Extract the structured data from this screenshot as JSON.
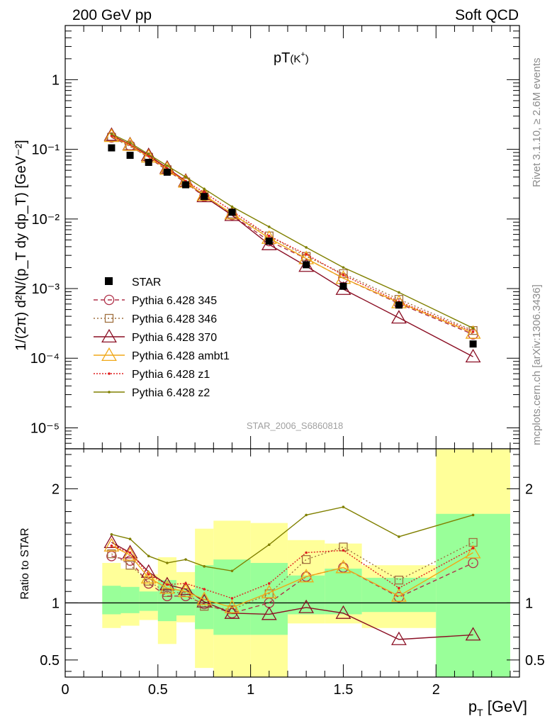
{
  "header": {
    "left": "200 GeV pp",
    "right": "Soft QCD"
  },
  "side_labels": {
    "top": "Rivet 3.1.10, ≥ 2.6M events",
    "bottom": "mcplots.cern.ch [arXiv:1306.3436]"
  },
  "watermark": "STAR_2006_S6860818",
  "chart_data": [
    {
      "type": "line",
      "panel": "main",
      "title": "pT(K+)",
      "title_main": "pT",
      "title_sub": "(K",
      "title_sup": "+",
      "title_close": ")",
      "ylabel": "1/(2π) d²N/(p_T dy dp_T) [GeV⁻²]",
      "yscale": "log",
      "ylim": [
        5e-06,
        6
      ],
      "xlim": [
        0,
        2.45
      ],
      "y_ticks": [
        "10⁻⁵",
        "10⁻⁴",
        "10⁻³",
        "10⁻²",
        "10⁻¹",
        "1"
      ],
      "y_tick_values": [
        1e-05,
        0.0001,
        0.001,
        0.01,
        0.1,
        1
      ],
      "legend_position": "left-middle",
      "x": [
        0.25,
        0.35,
        0.45,
        0.55,
        0.65,
        0.75,
        0.9,
        1.1,
        1.3,
        1.5,
        1.8,
        2.2
      ],
      "data": {
        "name": "STAR",
        "values": [
          0.105,
          0.082,
          0.065,
          0.047,
          0.031,
          0.021,
          0.0125,
          0.0048,
          0.0022,
          0.00108,
          0.00058,
          0.00016
        ]
      },
      "series": [
        {
          "name": "Pythia 6.428 345",
          "color": "#b03048",
          "marker": "circle",
          "dash": "6,4",
          "values": [
            0.148,
            0.113,
            0.076,
            0.05,
            0.033,
            0.021,
            0.0114,
            0.0048,
            0.0027,
            0.00141,
            0.00061,
            0.00022
          ]
        },
        {
          "name": "Pythia 6.428 346",
          "color": "#a07040",
          "marker": "square",
          "dash": "2,3",
          "values": [
            0.149,
            0.11,
            0.077,
            0.051,
            0.034,
            0.022,
            0.0118,
            0.0057,
            0.0029,
            0.00164,
            0.0007,
            0.00025
          ]
        },
        {
          "name": "Pythia 6.428 370",
          "color": "#8b0f24",
          "marker": "triangle",
          "dash": "",
          "values": [
            0.16,
            0.117,
            0.082,
            0.054,
            0.035,
            0.021,
            0.0113,
            0.0043,
            0.0021,
            0.00098,
            0.00038,
            0.000105
          ]
        },
        {
          "name": "Pythia 6.428 ambt1",
          "color": "#f0a818",
          "marker": "triangle",
          "dash": "",
          "values": [
            0.154,
            0.115,
            0.078,
            0.052,
            0.034,
            0.022,
            0.0119,
            0.0053,
            0.0027,
            0.00141,
            0.00063,
            0.00023
          ]
        },
        {
          "name": "Pythia 6.428 z1",
          "color": "#e02020",
          "marker": "dot",
          "dash": "2,2",
          "values": [
            0.156,
            0.117,
            0.08,
            0.053,
            0.035,
            0.024,
            0.013,
            0.0057,
            0.0031,
            0.00156,
            0.00065,
            0.00024
          ]
        },
        {
          "name": "Pythia 6.428 z2",
          "color": "#808000",
          "marker": "dot",
          "dash": "",
          "values": [
            0.166,
            0.124,
            0.085,
            0.058,
            0.04,
            0.027,
            0.015,
            0.0077,
            0.0039,
            0.00201,
            0.00088,
            0.00027
          ]
        }
      ]
    },
    {
      "type": "line",
      "panel": "ratio",
      "ylabel": "Ratio to STAR",
      "xlabel": "p_T [GeV]",
      "xlabel_main": "p",
      "xlabel_sub": "T",
      "xlabel_rest": " [GeV]",
      "ylim": [
        0.35,
        2.35
      ],
      "xlim": [
        0,
        2.45
      ],
      "x_ticks": [
        "0",
        "0.5",
        "1",
        "1.5",
        "2"
      ],
      "x_tick_values": [
        0,
        0.5,
        1,
        1.5,
        2
      ],
      "y_ticks": [
        "0.5",
        "1",
        "2"
      ],
      "y_tick_values": [
        0.5,
        1,
        2
      ],
      "bins": [
        {
          "lo": 0.2,
          "hi": 0.3,
          "green": [
            0.9,
            1.15
          ],
          "yellow": [
            0.78,
            1.35
          ]
        },
        {
          "lo": 0.3,
          "hi": 0.4,
          "green": [
            0.91,
            1.14
          ],
          "yellow": [
            0.8,
            1.3
          ]
        },
        {
          "lo": 0.4,
          "hi": 0.5,
          "green": [
            0.93,
            1.1
          ],
          "yellow": [
            0.85,
            1.25
          ]
        },
        {
          "lo": 0.5,
          "hi": 0.6,
          "green": [
            0.84,
            1.2
          ],
          "yellow": [
            0.64,
            1.4
          ]
        },
        {
          "lo": 0.6,
          "hi": 0.7,
          "green": [
            0.89,
            1.12
          ],
          "yellow": [
            0.83,
            1.27
          ]
        },
        {
          "lo": 0.7,
          "hi": 0.8,
          "green": [
            0.77,
            1.33
          ],
          "yellow": [
            0.43,
            1.65
          ]
        },
        {
          "lo": 0.8,
          "hi": 1.0,
          "green": [
            0.72,
            1.38
          ],
          "yellow": [
            0.35,
            1.72
          ]
        },
        {
          "lo": 1.0,
          "hi": 1.2,
          "green": [
            0.72,
            1.35
          ],
          "yellow": [
            0.35,
            1.7
          ]
        },
        {
          "lo": 1.2,
          "hi": 1.4,
          "green": [
            0.9,
            1.24
          ],
          "yellow": [
            0.82,
            1.55
          ]
        },
        {
          "lo": 1.4,
          "hi": 1.6,
          "green": [
            0.9,
            1.3
          ],
          "yellow": [
            0.82,
            1.52
          ]
        },
        {
          "lo": 1.6,
          "hi": 2.0,
          "green": [
            0.92,
            1.22
          ],
          "yellow": [
            0.78,
            1.33
          ]
        },
        {
          "lo": 2.0,
          "hi": 2.4,
          "green": [
            0.35,
            1.78
          ],
          "yellow": [
            0.35,
            2.35
          ]
        }
      ],
      "x": [
        0.25,
        0.35,
        0.45,
        0.55,
        0.65,
        0.75,
        0.9,
        1.1,
        1.3,
        1.5,
        1.8,
        2.2
      ],
      "series": [
        {
          "name": "Pythia 6.428 345",
          "color": "#b03048",
          "marker": "circle",
          "dash": "6,4",
          "values": [
            1.41,
            1.37,
            1.17,
            1.06,
            1.06,
            0.99,
            0.91,
            1.0,
            1.23,
            1.31,
            1.05,
            1.35
          ]
        },
        {
          "name": "Pythia 6.428 346",
          "color": "#a07040",
          "marker": "square",
          "dash": "2,3",
          "values": [
            1.43,
            1.33,
            1.19,
            1.09,
            1.09,
            0.97,
            0.94,
            1.08,
            1.38,
            1.49,
            1.2,
            1.53
          ]
        },
        {
          "name": "Pythia 6.428 370",
          "color": "#8b0f24",
          "marker": "triangle",
          "dash": "",
          "values": [
            1.53,
            1.44,
            1.27,
            1.16,
            1.12,
            1.01,
            0.91,
            0.9,
            0.96,
            0.91,
            0.68,
            0.72
          ]
        },
        {
          "name": "Pythia 6.428 ambt1",
          "color": "#f0a818",
          "marker": "triangle",
          "dash": "",
          "values": [
            1.5,
            1.42,
            1.22,
            1.13,
            1.1,
            1.03,
            0.96,
            1.09,
            1.23,
            1.31,
            1.06,
            1.44
          ]
        },
        {
          "name": "Pythia 6.428 z1",
          "color": "#e02020",
          "marker": "dot",
          "dash": "2,2",
          "values": [
            1.5,
            1.44,
            1.25,
            1.16,
            1.17,
            1.12,
            1.04,
            1.17,
            1.44,
            1.46,
            1.13,
            1.48
          ]
        },
        {
          "name": "Pythia 6.428 z2",
          "color": "#808000",
          "marker": "dot",
          "dash": "",
          "values": [
            1.6,
            1.56,
            1.41,
            1.35,
            1.38,
            1.32,
            1.28,
            1.51,
            1.77,
            1.84,
            1.58,
            1.77
          ]
        }
      ]
    }
  ]
}
